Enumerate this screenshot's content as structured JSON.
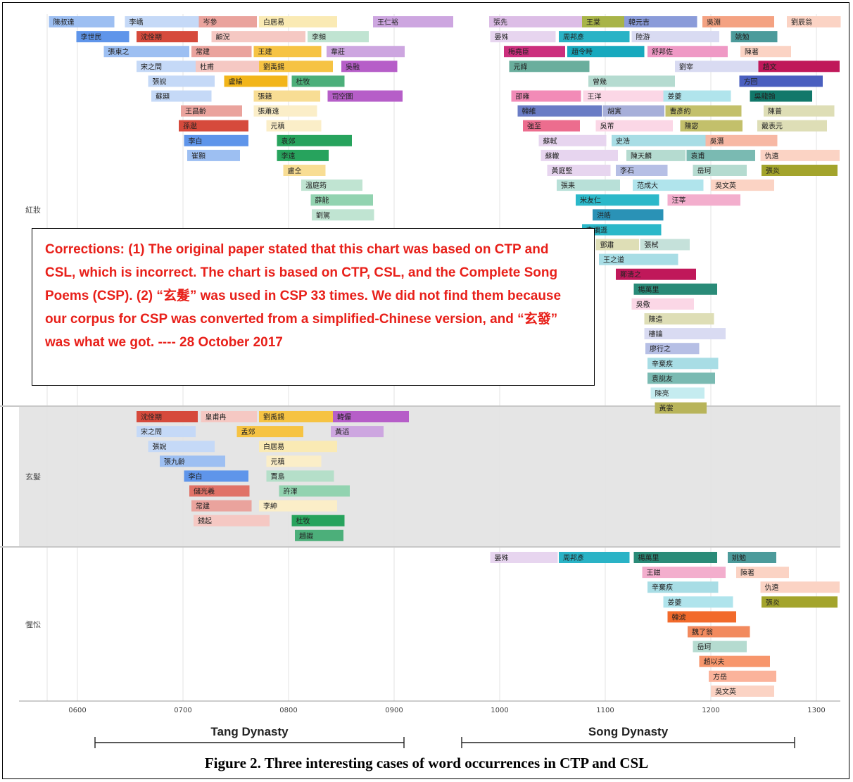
{
  "chart_data": {
    "type": "gantt",
    "x_ticks": [
      "0600",
      "0700",
      "0800",
      "0900",
      "1000",
      "1100",
      "1200",
      "1300"
    ],
    "x_range": [
      570,
      1323
    ],
    "grid": true,
    "periods": [
      {
        "label": "Tang Dynasty",
        "start": 618,
        "end": 909
      },
      {
        "label": "Song Dynasty",
        "start": 960,
        "end": 1279
      }
    ],
    "panels": [
      {
        "label": "紅妝",
        "background": "#ffffff",
        "bars": [
          {
            "name": "陳叔達",
            "start": 573,
            "end": 635,
            "color": "#9dbff2"
          },
          {
            "name": "李嶠",
            "start": 645,
            "end": 715,
            "color": "#c5d9f7"
          },
          {
            "name": "岑參",
            "start": 715,
            "end": 770,
            "color": "#eaa39d"
          },
          {
            "name": "白居易",
            "start": 772,
            "end": 846,
            "color": "#faeab4"
          },
          {
            "name": "王仁裕",
            "start": 880,
            "end": 956,
            "color": "#cda6e0"
          },
          {
            "name": "李世民",
            "start": 599,
            "end": 649,
            "color": "#5f95ea"
          },
          {
            "name": "沈佺期",
            "start": 656,
            "end": 714,
            "color": "#d64a3c"
          },
          {
            "name": "顧況",
            "start": 727,
            "end": 816,
            "color": "#f5c8c3"
          },
          {
            "name": "李頻",
            "start": 818,
            "end": 876,
            "color": "#c0e4d2"
          },
          {
            "name": "張柬之",
            "start": 625,
            "end": 706,
            "color": "#9dbff2"
          },
          {
            "name": "常建",
            "start": 708,
            "end": 765,
            "color": "#eaa39d"
          },
          {
            "name": "王建",
            "start": 767,
            "end": 831,
            "color": "#f6c343"
          },
          {
            "name": "韋莊",
            "start": 836,
            "end": 910,
            "color": "#cda6e0"
          },
          {
            "name": "宋之問",
            "start": 656,
            "end": 712,
            "color": "#c5d9f7"
          },
          {
            "name": "杜甫",
            "start": 712,
            "end": 772,
            "color": "#f5c8c3"
          },
          {
            "name": "劉禹錫",
            "start": 772,
            "end": 842,
            "color": "#f6c343"
          },
          {
            "name": "吳融",
            "start": 850,
            "end": 903,
            "color": "#b65ec8"
          },
          {
            "name": "張說",
            "start": 667,
            "end": 730,
            "color": "#c5d9f7"
          },
          {
            "name": "盧綸",
            "start": 739,
            "end": 799,
            "color": "#f2b51a"
          },
          {
            "name": "杜牧",
            "start": 803,
            "end": 853,
            "color": "#4caf7a"
          },
          {
            "name": "蘇頲",
            "start": 670,
            "end": 727,
            "color": "#c5d9f7"
          },
          {
            "name": "張籍",
            "start": 767,
            "end": 830,
            "color": "#f8dd94"
          },
          {
            "name": "司空圖",
            "start": 837,
            "end": 908,
            "color": "#b65ec8"
          },
          {
            "name": "王昌齡",
            "start": 698,
            "end": 756,
            "color": "#eaa39d"
          },
          {
            "name": "張蕭遠",
            "start": 767,
            "end": 827,
            "color": "#fbeec8"
          },
          {
            "name": "孫逖",
            "start": 696,
            "end": 762,
            "color": "#d64a3c"
          },
          {
            "name": "元稹",
            "start": 779,
            "end": 831,
            "color": "#fbeec8"
          },
          {
            "name": "李白",
            "start": 701,
            "end": 762,
            "color": "#5f95ea"
          },
          {
            "name": "袁郊",
            "start": 789,
            "end": 860,
            "color": "#27a35d"
          },
          {
            "name": "崔顥",
            "start": 704,
            "end": 754,
            "color": "#9dbff2"
          },
          {
            "name": "李遠",
            "start": 789,
            "end": 838,
            "color": "#27a35d"
          },
          {
            "name": "盧仝",
            "start": 795,
            "end": 835,
            "color": "#f8dd94"
          },
          {
            "name": "溫庭筠",
            "start": 812,
            "end": 870,
            "color": "#c0e4d2"
          },
          {
            "name": "薛能",
            "start": 821,
            "end": 880,
            "color": "#92d3b0"
          },
          {
            "name": "劉駕",
            "start": 822,
            "end": 881,
            "color": "#c0e4d2"
          },
          {
            "name": "張先",
            "start": 990,
            "end": 1078,
            "color": "#dcbde6"
          },
          {
            "name": "王棠",
            "start": 1078,
            "end": 1118,
            "color": "#a8b448"
          },
          {
            "name": "韓元吉",
            "start": 1118,
            "end": 1187,
            "color": "#8a9bd9"
          },
          {
            "name": "吳淵",
            "start": 1192,
            "end": 1260,
            "color": "#f4a282"
          },
          {
            "name": "劉辰翁",
            "start": 1272,
            "end": 1323,
            "color": "#fbd3c4"
          },
          {
            "name": "晏殊",
            "start": 991,
            "end": 1053,
            "color": "#e7d5ef"
          },
          {
            "name": "周邦彥",
            "start": 1056,
            "end": 1123,
            "color": "#2ab3c6"
          },
          {
            "name": "陸游",
            "start": 1125,
            "end": 1208,
            "color": "#d9dbf2"
          },
          {
            "name": "姚勉",
            "start": 1219,
            "end": 1263,
            "color": "#4c9b9b"
          },
          {
            "name": "梅堯臣",
            "start": 1004,
            "end": 1062,
            "color": "#cc2f7d"
          },
          {
            "name": "趙令畤",
            "start": 1064,
            "end": 1137,
            "color": "#17a9be"
          },
          {
            "name": "舒邦佐",
            "start": 1140,
            "end": 1216,
            "color": "#ef99c5"
          },
          {
            "name": "陳著",
            "start": 1228,
            "end": 1276,
            "color": "#fbd3c4"
          },
          {
            "name": "元絳",
            "start": 1009,
            "end": 1085,
            "color": "#6aae9d"
          },
          {
            "name": "曾幾",
            "start": 1084,
            "end": 1166,
            "color": "#b5dbd0"
          },
          {
            "name": "劉宰",
            "start": 1166,
            "end": 1245,
            "color": "#d9dbf2"
          },
          {
            "name": "趙文",
            "start": 1245,
            "end": 1322,
            "color": "#c0185a"
          },
          {
            "name": "邵雍",
            "start": 1011,
            "end": 1077,
            "color": "#f28bb7"
          },
          {
            "name": "王洋",
            "start": 1079,
            "end": 1155,
            "color": "#fbd7e6"
          },
          {
            "name": "姜夔",
            "start": 1155,
            "end": 1219,
            "color": "#b0e4ec"
          },
          {
            "name": "方回",
            "start": 1227,
            "end": 1306,
            "color": "#4a5fbf"
          },
          {
            "name": "韓維",
            "start": 1017,
            "end": 1097,
            "color": "#6a7cc5"
          },
          {
            "name": "胡寅",
            "start": 1098,
            "end": 1156,
            "color": "#a7afd9"
          },
          {
            "name": "曹彥約",
            "start": 1157,
            "end": 1229,
            "color": "#c3c06b"
          },
          {
            "name": "吳龍翰",
            "start": 1237,
            "end": 1296,
            "color": "#11786a"
          },
          {
            "name": "強至",
            "start": 1022,
            "end": 1076,
            "color": "#ec6d8e"
          },
          {
            "name": "吳芾",
            "start": 1091,
            "end": 1164,
            "color": "#fbd7e6"
          },
          {
            "name": "陳宓",
            "start": 1171,
            "end": 1230,
            "color": "#c3c06b"
          },
          {
            "name": "陳普",
            "start": 1250,
            "end": 1317,
            "color": "#dedeb6"
          },
          {
            "name": "蘇軾",
            "start": 1037,
            "end": 1101,
            "color": "#e7d5ef"
          },
          {
            "name": "史浩",
            "start": 1106,
            "end": 1195,
            "color": "#a8dde5"
          },
          {
            "name": "吳潛",
            "start": 1195,
            "end": 1263,
            "color": "#f7b8a4"
          },
          {
            "name": "蘇轍",
            "start": 1039,
            "end": 1112,
            "color": "#e7d5ef"
          },
          {
            "name": "陳天麟",
            "start": 1120,
            "end": 1176,
            "color": "#b5dbd0"
          },
          {
            "name": "袁甫",
            "start": 1177,
            "end": 1242,
            "color": "#7abab2"
          },
          {
            "name": "戴表元",
            "start": 1244,
            "end": 1310,
            "color": "#dedeb6"
          },
          {
            "name": "黃庭堅",
            "start": 1045,
            "end": 1105,
            "color": "#e7d5ef"
          },
          {
            "name": "李石",
            "start": 1110,
            "end": 1159,
            "color": "#b6bfe5"
          },
          {
            "name": "岳珂",
            "start": 1183,
            "end": 1234,
            "color": "#b5dbd0"
          },
          {
            "name": "仇遠",
            "start": 1247,
            "end": 1322,
            "color": "#fbd3c4"
          },
          {
            "name": "張耒",
            "start": 1054,
            "end": 1114,
            "color": "#b8e0d8"
          },
          {
            "name": "范成大",
            "start": 1126,
            "end": 1193,
            "color": "#b0e4ec"
          },
          {
            "name": "吳文英",
            "start": 1200,
            "end": 1260,
            "color": "#fbd3c4"
          },
          {
            "name": "米友仁",
            "start": 1072,
            "end": 1151,
            "color": "#2bb8c9"
          },
          {
            "name": "汪莘",
            "start": 1159,
            "end": 1228,
            "color": "#f3aecd"
          },
          {
            "name": "張炎",
            "start": 1248,
            "end": 1320,
            "color": "#a3a42c"
          },
          {
            "name": "洪皓",
            "start": 1088,
            "end": 1155,
            "color": "#2a92b6"
          },
          {
            "name": "李彌遜",
            "start": 1078,
            "end": 1153,
            "color": "#2bb8c9"
          },
          {
            "name": "鄧肅",
            "start": 1091,
            "end": 1132,
            "color": "#dedeb6"
          },
          {
            "name": "張栻",
            "start": 1133,
            "end": 1180,
            "color": "#c5e1da"
          },
          {
            "name": "王之道",
            "start": 1094,
            "end": 1169,
            "color": "#a8dde5"
          },
          {
            "name": "鄭清之",
            "start": 1110,
            "end": 1186,
            "color": "#c0185a"
          },
          {
            "name": "楊萬里",
            "start": 1127,
            "end": 1206,
            "color": "#2a8b78"
          },
          {
            "name": "吳儆",
            "start": 1125,
            "end": 1184,
            "color": "#fbd7e6"
          },
          {
            "name": "陳造",
            "start": 1137,
            "end": 1203,
            "color": "#dedeb6"
          },
          {
            "name": "樓鑰",
            "start": 1137,
            "end": 1214,
            "color": "#d9dbf2"
          },
          {
            "name": "廖行之",
            "start": 1138,
            "end": 1189,
            "color": "#b6bfe5"
          },
          {
            "name": "辛棄疾",
            "start": 1140,
            "end": 1207,
            "color": "#a8dde5"
          },
          {
            "name": "袁說友",
            "start": 1140,
            "end": 1204,
            "color": "#7abab2"
          },
          {
            "name": "陳亮",
            "start": 1143,
            "end": 1194,
            "color": "#c5ecf0"
          },
          {
            "name": "黃裳",
            "start": 1147,
            "end": 1196,
            "color": "#b8b45a"
          }
        ]
      },
      {
        "label": "玄髮",
        "background": "#e5e5e5",
        "bars": [
          {
            "name": "沈佺期",
            "start": 656,
            "end": 714,
            "color": "#d64a3c"
          },
          {
            "name": "皇甫冉",
            "start": 717,
            "end": 770,
            "color": "#f5c8c3"
          },
          {
            "name": "劉禹錫",
            "start": 772,
            "end": 842,
            "color": "#f6c343"
          },
          {
            "name": "韓偓",
            "start": 842,
            "end": 914,
            "color": "#b65ec8"
          },
          {
            "name": "宋之問",
            "start": 656,
            "end": 712,
            "color": "#c5d9f7"
          },
          {
            "name": "孟郊",
            "start": 751,
            "end": 814,
            "color": "#f6c343"
          },
          {
            "name": "黃滔",
            "start": 840,
            "end": 890,
            "color": "#cda6e0"
          },
          {
            "name": "張說",
            "start": 667,
            "end": 730,
            "color": "#c5d9f7"
          },
          {
            "name": "白居易",
            "start": 772,
            "end": 846,
            "color": "#faeab4"
          },
          {
            "name": "張九齡",
            "start": 678,
            "end": 740,
            "color": "#9dbff2"
          },
          {
            "name": "元稹",
            "start": 779,
            "end": 831,
            "color": "#fbeec8"
          },
          {
            "name": "李白",
            "start": 701,
            "end": 762,
            "color": "#5f95ea"
          },
          {
            "name": "賈島",
            "start": 779,
            "end": 843,
            "color": "#b5dfc9"
          },
          {
            "name": "儲光羲",
            "start": 706,
            "end": 763,
            "color": "#e07267"
          },
          {
            "name": "許渾",
            "start": 791,
            "end": 858,
            "color": "#92d3b0"
          },
          {
            "name": "常建",
            "start": 708,
            "end": 765,
            "color": "#eaa39d"
          },
          {
            "name": "李紳",
            "start": 772,
            "end": 846,
            "color": "#fbeec8"
          },
          {
            "name": "錢起",
            "start": 710,
            "end": 782,
            "color": "#f5c8c3"
          },
          {
            "name": "杜牧",
            "start": 803,
            "end": 853,
            "color": "#27a35d"
          },
          {
            "name": "趙嘏",
            "start": 806,
            "end": 852,
            "color": "#4caf7a"
          }
        ]
      },
      {
        "label": "惺忪",
        "background": "#ffffff",
        "bars": [
          {
            "name": "晏殊",
            "start": 991,
            "end": 1055,
            "color": "#e7d5ef"
          },
          {
            "name": "周邦彥",
            "start": 1056,
            "end": 1123,
            "color": "#2ab3c6"
          },
          {
            "name": "楊萬里",
            "start": 1127,
            "end": 1206,
            "color": "#2a8b78"
          },
          {
            "name": "姚勉",
            "start": 1216,
            "end": 1262,
            "color": "#4c9b9b"
          },
          {
            "name": "王鎡",
            "start": 1135,
            "end": 1214,
            "color": "#f3aecd"
          },
          {
            "name": "陳著",
            "start": 1224,
            "end": 1274,
            "color": "#fbd3c4"
          },
          {
            "name": "辛棄疾",
            "start": 1140,
            "end": 1207,
            "color": "#a8dde5"
          },
          {
            "name": "仇遠",
            "start": 1247,
            "end": 1322,
            "color": "#fbd3c4"
          },
          {
            "name": "姜夔",
            "start": 1155,
            "end": 1221,
            "color": "#b0e4ec"
          },
          {
            "name": "張炎",
            "start": 1248,
            "end": 1320,
            "color": "#a3a42c"
          },
          {
            "name": "韓淲",
            "start": 1159,
            "end": 1224,
            "color": "#f26a2b"
          },
          {
            "name": "魏了翁",
            "start": 1178,
            "end": 1237,
            "color": "#f28a5e"
          },
          {
            "name": "岳珂",
            "start": 1183,
            "end": 1234,
            "color": "#b5dbd0"
          },
          {
            "name": "趙以夫",
            "start": 1189,
            "end": 1256,
            "color": "#f7966c"
          },
          {
            "name": "方岳",
            "start": 1198,
            "end": 1262,
            "color": "#fbb39b"
          },
          {
            "name": "吳文英",
            "start": 1200,
            "end": 1260,
            "color": "#fbd3c4"
          }
        ]
      }
    ]
  },
  "note": {
    "text": "Corrections: (1) The original paper stated that this chart was based on CTP and CSL, which is incorrect. The chart is based on CTP, CSL, and the Complete Song Poems (CSP). (2) “玄髮” was used in CSP 33 times. We did not find them because our corpus for CSP was converted from a simplified-Chinese version, and “玄發” was what we got. ---- 28 October 2017"
  },
  "caption": "Figure 2. Three interesting cases of word occurrences in CTP and CSL"
}
